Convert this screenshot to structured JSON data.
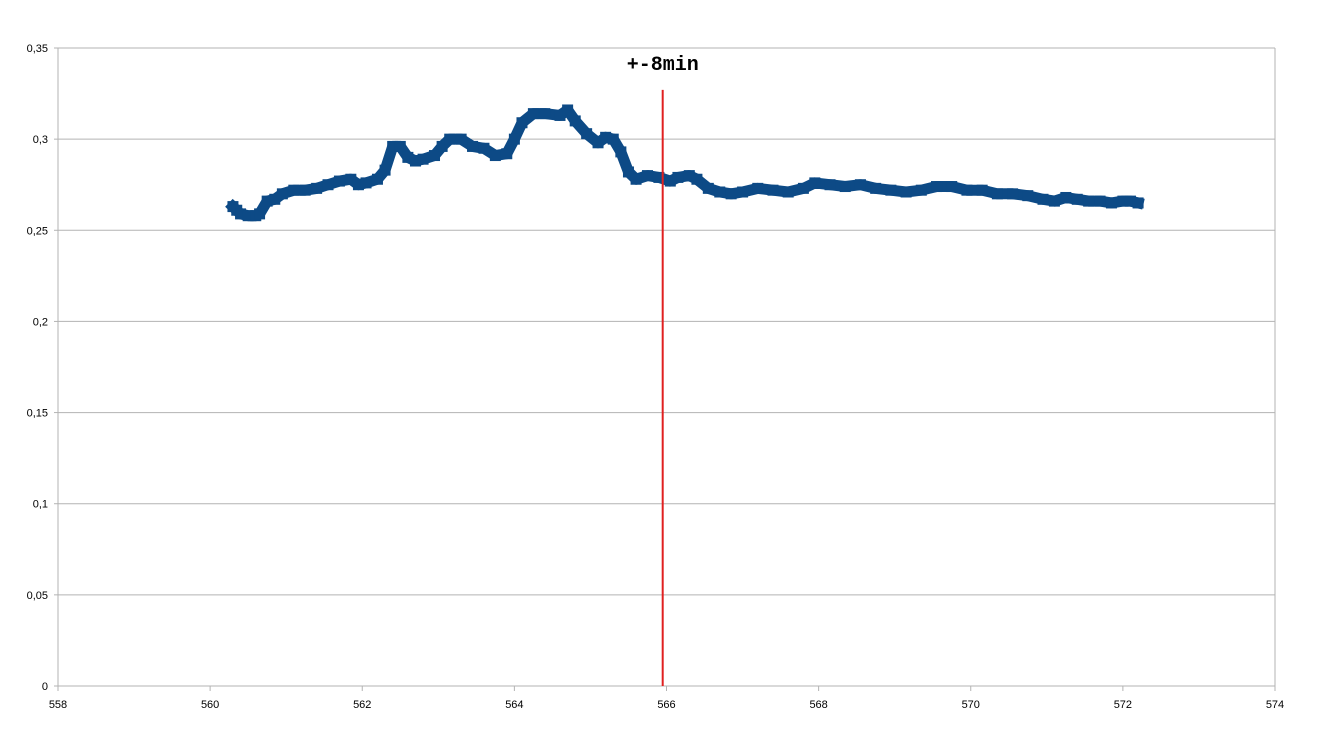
{
  "chart_data": {
    "type": "scatter",
    "title": "",
    "xlabel": "",
    "ylabel": "",
    "xlim": [
      558,
      574
    ],
    "ylim": [
      0,
      0.35
    ],
    "x_ticks": [
      558,
      560,
      562,
      564,
      566,
      568,
      570,
      572,
      574
    ],
    "x_tick_labels": [
      "558",
      "560",
      "562",
      "564",
      "566",
      "568",
      "570",
      "572",
      "574"
    ],
    "y_ticks": [
      0,
      0.05,
      0.1,
      0.15,
      0.2,
      0.25,
      0.3,
      0.35
    ],
    "y_tick_labels": [
      "0",
      "0,05",
      "0,1",
      "0,15",
      "0,2",
      "0,25",
      "0,3",
      "0,35"
    ],
    "grid": "horizontal",
    "legend": "none",
    "series": [
      {
        "color": "#0d4a86",
        "points": [
          [
            560.3,
            0.263
          ],
          [
            560.35,
            0.261
          ],
          [
            560.4,
            0.259
          ],
          [
            560.5,
            0.258
          ],
          [
            560.6,
            0.258
          ],
          [
            560.65,
            0.259
          ],
          [
            560.75,
            0.266
          ],
          [
            560.85,
            0.267
          ],
          [
            560.95,
            0.27
          ],
          [
            561.1,
            0.272
          ],
          [
            561.25,
            0.272
          ],
          [
            561.4,
            0.273
          ],
          [
            561.55,
            0.275
          ],
          [
            561.7,
            0.277
          ],
          [
            561.85,
            0.278
          ],
          [
            561.95,
            0.275
          ],
          [
            562.05,
            0.276
          ],
          [
            562.2,
            0.278
          ],
          [
            562.3,
            0.283
          ],
          [
            562.4,
            0.296
          ],
          [
            562.5,
            0.296
          ],
          [
            562.6,
            0.29
          ],
          [
            562.7,
            0.288
          ],
          [
            562.8,
            0.289
          ],
          [
            562.95,
            0.291
          ],
          [
            563.05,
            0.296
          ],
          [
            563.15,
            0.3
          ],
          [
            563.3,
            0.3
          ],
          [
            563.45,
            0.296
          ],
          [
            563.6,
            0.295
          ],
          [
            563.75,
            0.291
          ],
          [
            563.9,
            0.292
          ],
          [
            564.0,
            0.3
          ],
          [
            564.1,
            0.309
          ],
          [
            564.25,
            0.314
          ],
          [
            564.4,
            0.314
          ],
          [
            564.6,
            0.313
          ],
          [
            564.7,
            0.316
          ],
          [
            564.8,
            0.31
          ],
          [
            564.95,
            0.303
          ],
          [
            565.1,
            0.298
          ],
          [
            565.2,
            0.301
          ],
          [
            565.3,
            0.3
          ],
          [
            565.4,
            0.293
          ],
          [
            565.5,
            0.282
          ],
          [
            565.6,
            0.278
          ],
          [
            565.75,
            0.28
          ],
          [
            565.9,
            0.279
          ],
          [
            566.05,
            0.277
          ],
          [
            566.15,
            0.279
          ],
          [
            566.3,
            0.28
          ],
          [
            566.4,
            0.278
          ],
          [
            566.55,
            0.273
          ],
          [
            566.7,
            0.271
          ],
          [
            566.85,
            0.27
          ],
          [
            567.0,
            0.271
          ],
          [
            567.2,
            0.273
          ],
          [
            567.4,
            0.272
          ],
          [
            567.6,
            0.271
          ],
          [
            567.8,
            0.273
          ],
          [
            567.95,
            0.276
          ],
          [
            568.15,
            0.275
          ],
          [
            568.35,
            0.274
          ],
          [
            568.55,
            0.275
          ],
          [
            568.75,
            0.273
          ],
          [
            568.95,
            0.272
          ],
          [
            569.15,
            0.271
          ],
          [
            569.35,
            0.272
          ],
          [
            569.55,
            0.274
          ],
          [
            569.75,
            0.274
          ],
          [
            569.95,
            0.272
          ],
          [
            570.15,
            0.272
          ],
          [
            570.35,
            0.27
          ],
          [
            570.55,
            0.27
          ],
          [
            570.75,
            0.269
          ],
          [
            570.95,
            0.267
          ],
          [
            571.1,
            0.266
          ],
          [
            571.25,
            0.268
          ],
          [
            571.4,
            0.267
          ],
          [
            571.55,
            0.266
          ],
          [
            571.7,
            0.266
          ],
          [
            571.85,
            0.265
          ],
          [
            572.0,
            0.266
          ],
          [
            572.1,
            0.266
          ],
          [
            572.2,
            0.265
          ]
        ]
      }
    ],
    "annotations": [
      {
        "type": "vline",
        "x": 565.95,
        "y_from": 0,
        "y_to": 0.327,
        "color": "#e02020"
      },
      {
        "type": "text",
        "text": "+-8min",
        "x": 565.95,
        "y": 0.338
      }
    ]
  }
}
